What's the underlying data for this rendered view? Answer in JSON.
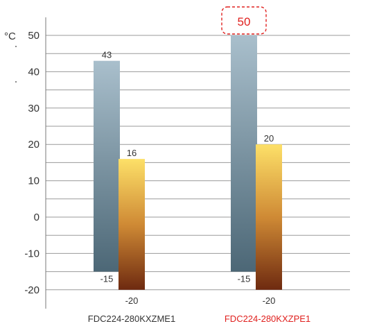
{
  "chart_data": {
    "type": "bar",
    "ylabel": "°C",
    "ylim": [
      -22,
      55
    ],
    "yticks": [
      50,
      40,
      30,
      20,
      10,
      0,
      -10,
      -20
    ],
    "grid": true,
    "categories": [
      "FDC224-280KXZME1",
      "FDC224-280KXZPE1"
    ],
    "bar_pairs": [
      {
        "high": 43,
        "low_of_high": -15,
        "high2": 16,
        "low_of_high2": -20
      },
      {
        "high": 50,
        "low_of_high": -15,
        "high2": 20,
        "low_of_high2": -20
      }
    ],
    "bar_labels": [
      {
        "top1": "43",
        "bottom1": "-15",
        "top2": "16",
        "bottom2": "-20"
      },
      {
        "top1": "50",
        "bottom1": "-15",
        "top2": "20",
        "bottom2": "-20"
      }
    ],
    "highlight": {
      "category_index": 1,
      "value": "50"
    },
    "colors": {
      "bar1_top": "#a9bfcc",
      "bar1_bottom": "#4c6776",
      "bar2_top": "#fde068",
      "bar2_mid": "#cf8a35",
      "bar2_bottom": "#6e2a10",
      "grid": "#9a9a9a",
      "axis": "#7a7a7a",
      "text": "#333333",
      "highlight": "#e0201e"
    }
  }
}
